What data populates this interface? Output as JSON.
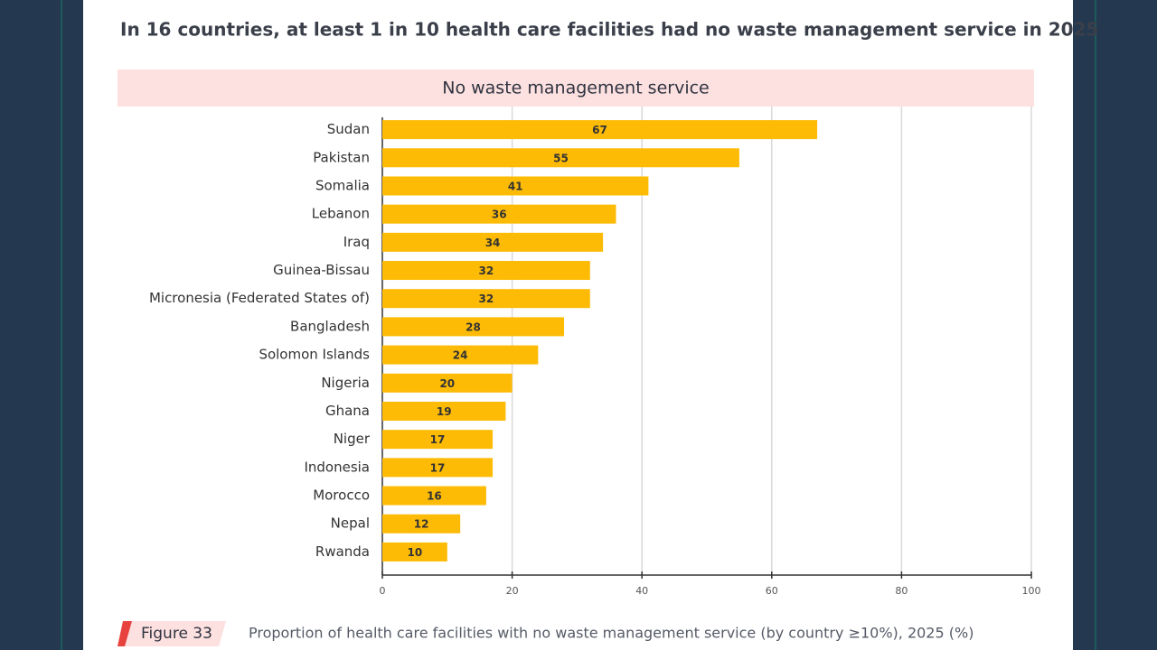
{
  "chart_data": {
    "type": "bar",
    "orientation": "horizontal",
    "title": "In 16 countries, at least 1 in 10 health care facilities had no waste management service in 2025",
    "subtitle": "No waste management service",
    "figure_label": "Figure 33",
    "caption": "Proportion of health care facilities with no waste management service (by country ≥10%), 2025 (%)",
    "categories": [
      "Sudan",
      "Pakistan",
      "Somalia",
      "Lebanon",
      "Iraq",
      "Guinea-Bissau",
      "Micronesia (Federated States of)",
      "Bangladesh",
      "Solomon Islands",
      "Nigeria",
      "Ghana",
      "Niger",
      "Indonesia",
      "Morocco",
      "Nepal",
      "Rwanda"
    ],
    "values": [
      67,
      55,
      41,
      36,
      34,
      32,
      32,
      28,
      24,
      20,
      19,
      17,
      17,
      16,
      12,
      10
    ],
    "color": "#fdbb05",
    "xlim": [
      0,
      100
    ],
    "xticks": [
      0,
      20,
      40,
      60,
      80,
      100
    ],
    "grid": true
  }
}
